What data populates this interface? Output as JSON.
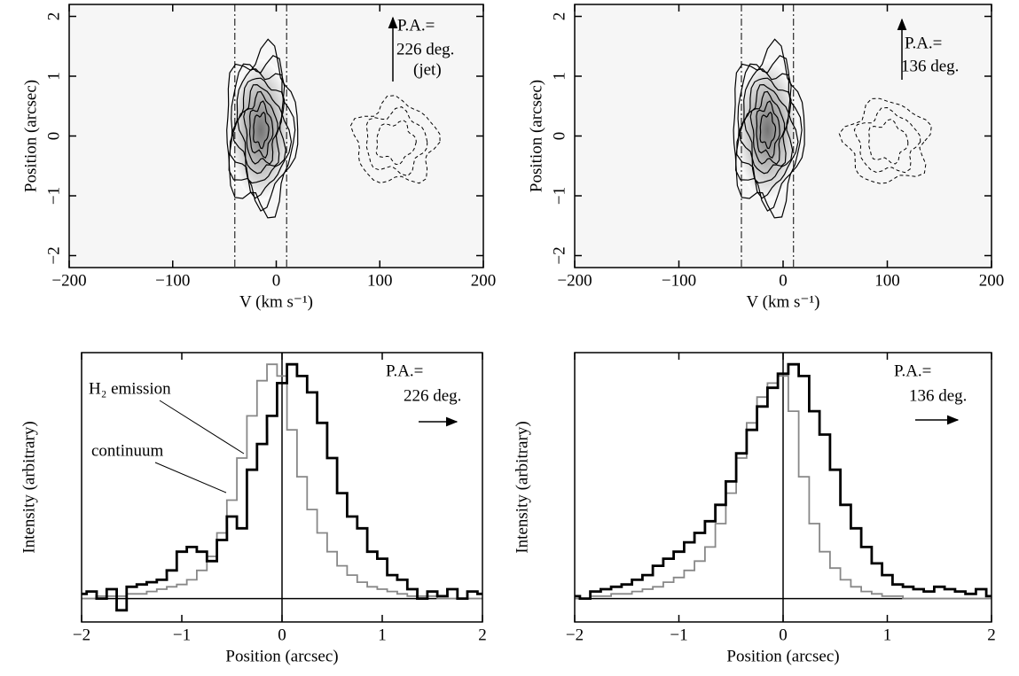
{
  "chart_data": [
    {
      "type": "contour",
      "xlabel": "V (km s⁻¹)",
      "ylabel": "Position (arcsec)",
      "xlim": [
        -200,
        200
      ],
      "xticks": [
        -200,
        -100,
        0,
        100,
        200
      ],
      "ylim": [
        -2.2,
        2.2
      ],
      "yticks": [
        -2,
        -1,
        0,
        1,
        2
      ],
      "vlines": [
        -40,
        10
      ],
      "annotations": [
        "P.A.=",
        "226 deg.",
        "(jet)"
      ]
    },
    {
      "type": "contour",
      "xlabel": "V (km s⁻¹)",
      "ylabel": "Position (arcsec)",
      "xlim": [
        -200,
        200
      ],
      "xticks": [
        -200,
        -100,
        0,
        100,
        200
      ],
      "ylim": [
        -2.2,
        2.2
      ],
      "yticks": [
        -2,
        -1,
        0,
        1,
        2
      ],
      "vlines": [
        -40,
        10
      ],
      "annotations": [
        "P.A.=",
        "136 deg."
      ]
    },
    {
      "type": "step",
      "xlabel": "Position (arcsec)",
      "ylabel": "Intensity (arbitrary)",
      "xlim": [
        -2,
        2
      ],
      "xticks": [
        -2,
        -1,
        0,
        1,
        2
      ],
      "ylim": [
        -0.1,
        1.05
      ],
      "x": [
        -2,
        -1.9,
        -1.8,
        -1.7,
        -1.6,
        -1.5,
        -1.4,
        -1.3,
        -1.2,
        -1.1,
        -1,
        -0.9,
        -0.8,
        -0.7,
        -0.6,
        -0.5,
        -0.4,
        -0.3,
        -0.2,
        -0.1,
        0,
        0.1,
        0.2,
        0.3,
        0.4,
        0.5,
        0.6,
        0.7,
        0.8,
        0.9,
        1,
        1.1,
        1.2,
        1.3,
        1.4,
        1.5,
        1.6,
        1.7,
        1.8,
        1.9,
        2
      ],
      "series": [
        {
          "name": "H₂ emission",
          "color": "#000000",
          "values": [
            0.02,
            0.03,
            0,
            0.04,
            -0.05,
            0.05,
            0.06,
            0.07,
            0.08,
            0.12,
            0.2,
            0.22,
            0.2,
            0.16,
            0.25,
            0.35,
            0.3,
            0.55,
            0.66,
            0.78,
            0.92,
            1,
            0.95,
            0.88,
            0.75,
            0.6,
            0.45,
            0.35,
            0.3,
            0.2,
            0.17,
            0.1,
            0.08,
            0.04,
            0,
            0.03,
            0.01,
            0.04,
            0,
            0.03,
            0.02
          ]
        },
        {
          "name": "continuum",
          "color": "#888888",
          "values": [
            0,
            0,
            0.01,
            0.01,
            0.01,
            0.02,
            0.02,
            0.03,
            0.04,
            0.05,
            0.06,
            0.08,
            0.12,
            0.18,
            0.28,
            0.42,
            0.6,
            0.78,
            0.93,
            1,
            0.95,
            0.72,
            0.52,
            0.38,
            0.28,
            0.2,
            0.14,
            0.1,
            0.07,
            0.05,
            0.04,
            0.03,
            0.02,
            0.01,
            0.01,
            0.01,
            0,
            0,
            0,
            0,
            0
          ]
        }
      ],
      "annotations": [
        "P.A.=",
        "226 deg."
      ]
    },
    {
      "type": "step",
      "xlabel": "Position (arcsec)",
      "ylabel": "Intensity (arbitrary)",
      "xlim": [
        -2,
        2
      ],
      "xticks": [
        -2,
        -1,
        0,
        1,
        2
      ],
      "ylim": [
        -0.1,
        1.05
      ],
      "x": [
        -2,
        -1.9,
        -1.8,
        -1.7,
        -1.6,
        -1.5,
        -1.4,
        -1.3,
        -1.2,
        -1.1,
        -1,
        -0.9,
        -0.8,
        -0.7,
        -0.6,
        -0.5,
        -0.4,
        -0.3,
        -0.2,
        -0.1,
        0,
        0.1,
        0.2,
        0.3,
        0.4,
        0.5,
        0.6,
        0.7,
        0.8,
        0.9,
        1,
        1.1,
        1.2,
        1.3,
        1.4,
        1.5,
        1.6,
        1.7,
        1.8,
        1.9,
        2
      ],
      "series": [
        {
          "color": "#000000",
          "values": [
            0.01,
            0,
            0.03,
            0.04,
            0.05,
            0.06,
            0.08,
            0.1,
            0.14,
            0.17,
            0.2,
            0.24,
            0.28,
            0.33,
            0.4,
            0.5,
            0.62,
            0.72,
            0.82,
            0.9,
            0.96,
            1,
            0.95,
            0.8,
            0.7,
            0.55,
            0.4,
            0.3,
            0.22,
            0.15,
            0.1,
            0.06,
            0.05,
            0.04,
            0.03,
            0.05,
            0.04,
            0.03,
            0.02,
            0.04,
            0.01
          ]
        },
        {
          "color": "#888888",
          "values": [
            0,
            0,
            0.01,
            0.01,
            0.02,
            0.02,
            0.03,
            0.04,
            0.05,
            0.07,
            0.09,
            0.12,
            0.16,
            0.22,
            0.32,
            0.45,
            0.6,
            0.75,
            0.86,
            0.92,
            0.95,
            0.8,
            0.52,
            0.32,
            0.2,
            0.13,
            0.08,
            0.05,
            0.03,
            0.02,
            0.01,
            0.01,
            0,
            0,
            0,
            0,
            0,
            0,
            0,
            0,
            0
          ]
        }
      ],
      "annotations": [
        "P.A.=",
        "136 deg."
      ]
    }
  ]
}
